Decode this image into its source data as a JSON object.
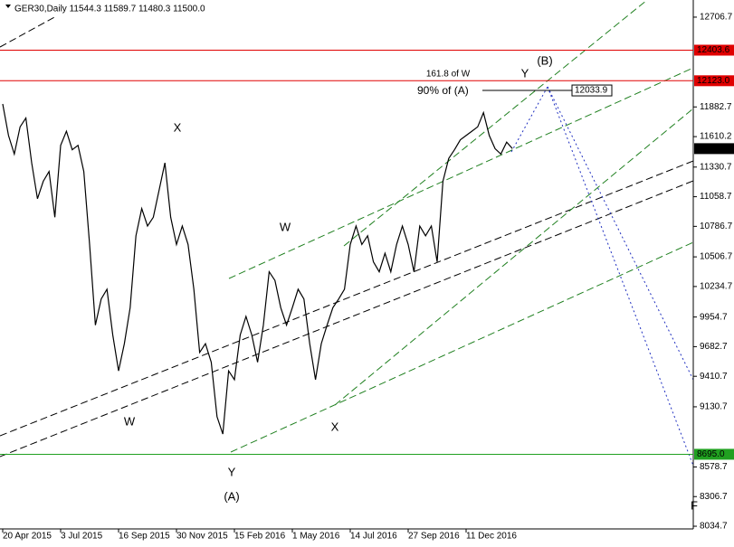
{
  "chart_data": {
    "type": "line",
    "title": "GER30,Daily  11544.3 11589.7 11480.3 11500.0",
    "categories": [
      "20 Apr 2015",
      null,
      null,
      null,
      null,
      null,
      null,
      null,
      null,
      null,
      "3 Jul 2015",
      null,
      null,
      null,
      null,
      null,
      null,
      null,
      null,
      null,
      "16 Sep 2015",
      null,
      null,
      null,
      null,
      null,
      null,
      null,
      null,
      null,
      "30 Nov 2015",
      null,
      null,
      null,
      null,
      null,
      null,
      null,
      null,
      null,
      "15 Feb 2016",
      null,
      null,
      null,
      null,
      null,
      null,
      null,
      null,
      null,
      "1 May 2016",
      null,
      null,
      null,
      null,
      null,
      null,
      null,
      null,
      null,
      "14 Jul 2016",
      null,
      null,
      null,
      null,
      null,
      null,
      null,
      null,
      null,
      "27 Sep 2016",
      null,
      null,
      null,
      null,
      null,
      null,
      null,
      null,
      null,
      "11 Dec 2016",
      null,
      null,
      null,
      null,
      null,
      null,
      null,
      null
    ],
    "series": [
      {
        "name": "GER30",
        "color": "#000000",
        "values": [
          11910,
          11620,
          11450,
          11700,
          11780,
          11370,
          11040,
          11200,
          11290,
          10870,
          11530,
          11660,
          11490,
          11530,
          11290,
          10620,
          9880,
          10120,
          10210,
          9790,
          9460,
          9710,
          10040,
          10700,
          10950,
          10790,
          10870,
          11120,
          11370,
          10870,
          10620,
          10790,
          10620,
          10210,
          9630,
          9710,
          9540,
          9040,
          8880,
          9460,
          9380,
          9790,
          9960,
          9790,
          9540,
          9880,
          10370,
          10290,
          10040,
          9880,
          10040,
          10210,
          10120,
          9710,
          9380,
          9710,
          9880,
          10040,
          10120,
          10210,
          10620,
          10790,
          10620,
          10700,
          10460,
          10370,
          10540,
          10370,
          10620,
          10790,
          10620,
          10370,
          10790,
          10700,
          10790,
          10460,
          11200,
          11410,
          11490,
          11580,
          11620,
          11660,
          11700,
          11830,
          11620,
          11500,
          11450,
          11560,
          11500
        ]
      }
    ],
    "ylim": [
      8010,
      12864
    ],
    "yticks": [
      12706.7,
      11882.7,
      11610.2,
      11330.7,
      11058.7,
      10786.7,
      10506.7,
      10234.7,
      9954.7,
      9682.7,
      9410.7,
      9130.7,
      8578.7,
      8306.7,
      8034.7
    ],
    "levels": [
      {
        "value": 12403.6,
        "label": "12403.6",
        "color": "#e00000"
      },
      {
        "value": 12123,
        "label": "12123.0",
        "color": "#e00000"
      },
      {
        "value": 11500,
        "label": "11500.0",
        "color": "#000000"
      },
      {
        "value": 8695,
        "label": "8695.0",
        "color": "#20a020"
      }
    ],
    "target": {
      "value": 12033.9,
      "label": "12033.9",
      "text": "90% of (A)"
    },
    "annotations": [
      "161.8 of W",
      "X",
      "W",
      "W",
      "X",
      "Y",
      "(A)",
      "Y",
      "(B)",
      "F"
    ]
  }
}
